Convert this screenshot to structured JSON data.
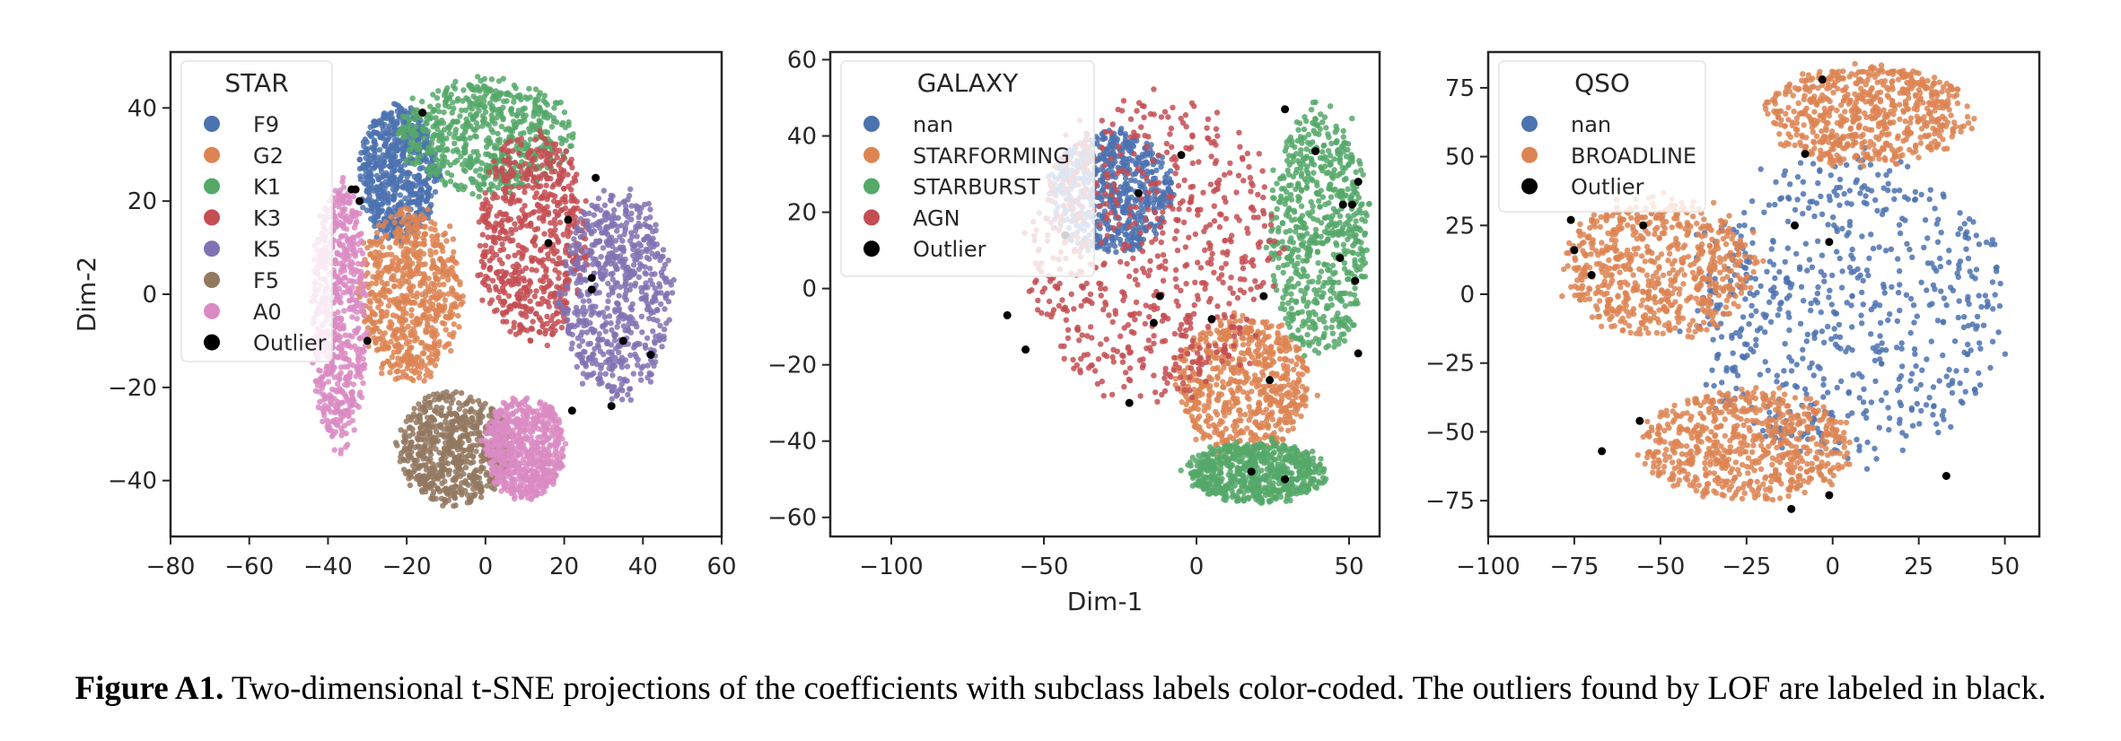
{
  "caption": {
    "label": "Figure A1.",
    "text": "Two-dimensional t-SNE projections of the coefficients with subclass labels color-coded. The outliers found by LOF are labeled in black."
  },
  "chart_data": [
    {
      "type": "scatter",
      "title": "",
      "xlabel": "",
      "ylabel": "Dim-2",
      "xlim": [
        -80,
        60
      ],
      "ylim": [
        -52,
        52
      ],
      "xticks": [
        -80,
        -60,
        -40,
        -20,
        0,
        20,
        40,
        60
      ],
      "yticks": [
        -40,
        -20,
        0,
        20,
        40
      ],
      "grid": false,
      "legend": {
        "title": "STAR",
        "placement": "upper-left"
      },
      "series": [
        {
          "name": "F9",
          "color": "#4c72b0",
          "regions": [
            {
              "cx": -22,
              "cy": 26,
              "rx": 10,
              "ry": 14
            }
          ]
        },
        {
          "name": "G2",
          "color": "#dd8452",
          "regions": [
            {
              "cx": -19,
              "cy": 0,
              "rx": 13,
              "ry": 18
            }
          ]
        },
        {
          "name": "K1",
          "color": "#55a868",
          "regions": [
            {
              "cx": 0,
              "cy": 34,
              "rx": 22,
              "ry": 12
            }
          ]
        },
        {
          "name": "K3",
          "color": "#c44e52",
          "regions": [
            {
              "cx": 12,
              "cy": 12,
              "rx": 14,
              "ry": 22
            }
          ]
        },
        {
          "name": "K5",
          "color": "#8172b3",
          "regions": [
            {
              "cx": 33,
              "cy": 0,
              "rx": 14,
              "ry": 22
            }
          ]
        },
        {
          "name": "F5",
          "color": "#937860",
          "regions": [
            {
              "cx": -8,
              "cy": -33,
              "rx": 14,
              "ry": 12
            }
          ]
        },
        {
          "name": "A0",
          "color": "#da8bc3",
          "regions": [
            {
              "cx": -37,
              "cy": -5,
              "rx": 7,
              "ry": 28
            },
            {
              "cx": 10,
              "cy": -33,
              "rx": 10,
              "ry": 11
            }
          ]
        }
      ],
      "outliers": {
        "name": "Outlier",
        "color": "#000000",
        "points": [
          [
            -16,
            39
          ],
          [
            -34,
            22.5
          ],
          [
            -33,
            22.5
          ],
          [
            -32,
            20
          ],
          [
            28,
            25
          ],
          [
            21,
            16
          ],
          [
            16,
            11
          ],
          [
            27,
            3.5
          ],
          [
            27,
            1
          ],
          [
            -30,
            -10
          ],
          [
            35,
            -10
          ],
          [
            42,
            -13
          ],
          [
            22,
            -25
          ],
          [
            32,
            -24
          ]
        ]
      }
    },
    {
      "type": "scatter",
      "title": "",
      "xlabel": "Dim-1",
      "ylabel": "",
      "xlim": [
        -120,
        60
      ],
      "ylim": [
        -65,
        62
      ],
      "xticks": [
        -100,
        -50,
        0,
        50
      ],
      "yticks": [
        -60,
        -40,
        -20,
        0,
        20,
        40,
        60
      ],
      "grid": false,
      "legend": {
        "title": "GALAXY",
        "placement": "upper-left"
      },
      "series": [
        {
          "name": "nan",
          "color": "#4c72b0",
          "regions": [
            {
              "cx": -28,
              "cy": 25,
              "rx": 20,
              "ry": 16
            }
          ]
        },
        {
          "name": "STARFORMING",
          "color": "#dd8452",
          "regions": [
            {
              "cx": 15,
              "cy": -25,
              "rx": 22,
              "ry": 18
            }
          ]
        },
        {
          "name": "STARBURST",
          "color": "#55a868",
          "regions": [
            {
              "cx": 40,
              "cy": 15,
              "rx": 16,
              "ry": 32
            },
            {
              "cx": 20,
              "cy": -48,
              "rx": 22,
              "ry": 8
            }
          ]
        },
        {
          "name": "AGN",
          "color": "#c44e52",
          "regions": [
            {
              "cx": -15,
              "cy": 10,
              "rx": 40,
              "ry": 40
            }
          ]
        }
      ],
      "outliers": {
        "name": "Outlier",
        "color": "#000000",
        "points": [
          [
            29,
            47
          ],
          [
            39,
            36
          ],
          [
            -5,
            35
          ],
          [
            -19,
            25
          ],
          [
            -43,
            14
          ],
          [
            53,
            28
          ],
          [
            48,
            22
          ],
          [
            51,
            22
          ],
          [
            47,
            8
          ],
          [
            52,
            2
          ],
          [
            -12,
            -2
          ],
          [
            22,
            -2
          ],
          [
            -62,
            -7
          ],
          [
            -14,
            -9
          ],
          [
            5,
            -8
          ],
          [
            53,
            -17
          ],
          [
            -56,
            -16
          ],
          [
            24,
            -24
          ],
          [
            -22,
            -30
          ],
          [
            18,
            -48
          ],
          [
            29,
            -50
          ]
        ]
      }
    },
    {
      "type": "scatter",
      "title": "",
      "xlabel": "",
      "ylabel": "",
      "xlim": [
        -100,
        60
      ],
      "ylim": [
        -88,
        88
      ],
      "xticks": [
        -100,
        -75,
        -50,
        -25,
        0,
        25,
        50
      ],
      "yticks": [
        -75,
        -50,
        -25,
        0,
        25,
        50,
        75
      ],
      "grid": false,
      "legend": {
        "title": "QSO",
        "placement": "upper-left"
      },
      "series": [
        {
          "name": "nan",
          "color": "#4c72b0",
          "regions": [
            {
              "cx": 5,
              "cy": -5,
              "rx": 45,
              "ry": 55
            }
          ]
        },
        {
          "name": "BROADLINE",
          "color": "#dd8452",
          "regions": [
            {
              "cx": 10,
              "cy": 65,
              "rx": 30,
              "ry": 18
            },
            {
              "cx": -50,
              "cy": 10,
              "rx": 28,
              "ry": 25
            },
            {
              "cx": -25,
              "cy": -55,
              "rx": 30,
              "ry": 20
            }
          ]
        }
      ],
      "outliers": {
        "name": "Outlier",
        "color": "#000000",
        "points": [
          [
            -3,
            78
          ],
          [
            -8,
            51
          ],
          [
            -76,
            27
          ],
          [
            -55,
            25
          ],
          [
            -11,
            25
          ],
          [
            -1,
            19
          ],
          [
            -75,
            16
          ],
          [
            -70,
            7
          ],
          [
            -56,
            -46
          ],
          [
            -67,
            -57
          ],
          [
            33,
            -66
          ],
          [
            -1,
            -73
          ],
          [
            -12,
            -78
          ]
        ]
      }
    }
  ]
}
